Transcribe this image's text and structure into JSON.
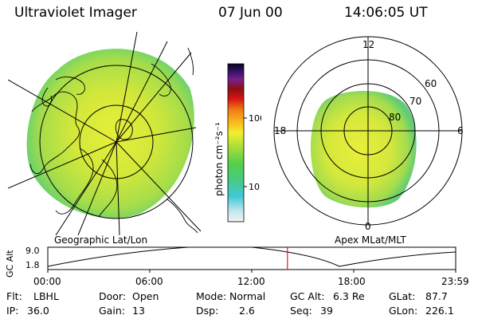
{
  "header": {
    "instrument": "Ultraviolet Imager",
    "date": "07 Jun 00",
    "time": "14:06:05 UT"
  },
  "colorbar": {
    "unit_label": "photon cm⁻²s⁻¹",
    "ticks": [
      "100",
      "10"
    ]
  },
  "left_panel": {
    "caption": "Geographic Lat/Lon"
  },
  "right_panel": {
    "caption": "Apex MLat/MLT",
    "mlt_labels": {
      "top": "12",
      "right": "6",
      "bottom": "0",
      "left": "18"
    },
    "lat_labels": [
      "60",
      "70",
      "80"
    ]
  },
  "timeline": {
    "ylabel": "GC Alt",
    "yticks": [
      "9.0",
      "1.8"
    ],
    "xticks": [
      "00:00",
      "06:00",
      "12:00",
      "18:00",
      "23:59"
    ],
    "current_time_hours": 14.1
  },
  "info": {
    "flt_label": "Flt:",
    "flt_value": "LBHL",
    "door_label": "Door:",
    "door_value": "Open",
    "mode_label": "Mode:",
    "mode_value": "Normal",
    "gcalt_label": "GC Alt:",
    "gcalt_value": "6.3 Re",
    "glat_label": "GLat:",
    "glat_value": "87.7",
    "ip_label": "IP:",
    "ip_value": "36.0",
    "gain_label": "Gain:",
    "gain_value": "13",
    "dsp_label": "Dsp:",
    "dsp_value": "2.6",
    "seq_label": "Seq:",
    "seq_value": "39",
    "glon_label": "GLon:",
    "glon_value": "226.1"
  }
}
